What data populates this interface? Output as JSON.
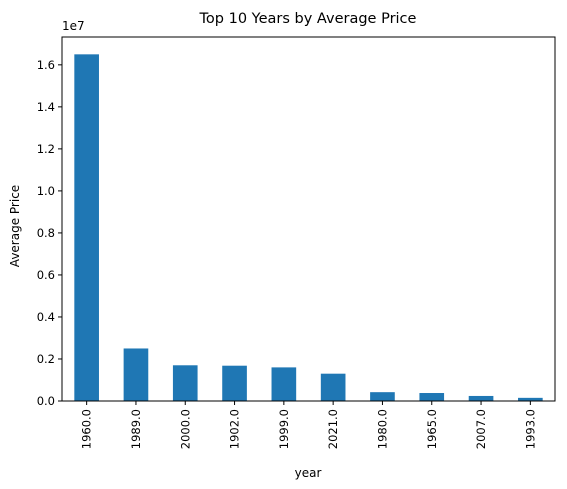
{
  "chart_data": {
    "type": "bar",
    "title": "Top 10 Years by Average Price",
    "xlabel": "year",
    "ylabel": "Average Price",
    "y_offset_label": "1e7",
    "categories": [
      "1960.0",
      "1989.0",
      "2000.0",
      "1902.0",
      "1999.0",
      "2021.0",
      "1980.0",
      "1965.0",
      "2007.0",
      "1993.0"
    ],
    "values": [
      16500000,
      2500000,
      1700000,
      1680000,
      1600000,
      1300000,
      420000,
      380000,
      240000,
      150000
    ],
    "ylim": [
      0,
      17325000
    ],
    "yticks": [
      0,
      2000000,
      4000000,
      6000000,
      8000000,
      10000000,
      12000000,
      14000000,
      16000000
    ],
    "ytick_labels": [
      "0.0",
      "0.2",
      "0.4",
      "0.6",
      "0.8",
      "1.0",
      "1.2",
      "1.4",
      "1.6"
    ],
    "grid": false,
    "bar_color": "#1f77b4"
  }
}
